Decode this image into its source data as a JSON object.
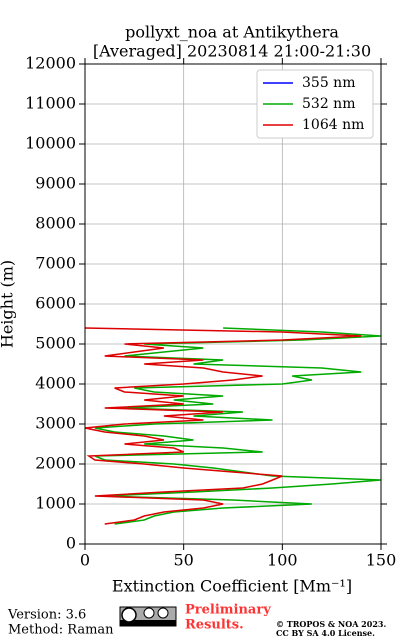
{
  "chart_data": {
    "type": "line",
    "title": [
      "pollyxt_noa at Antikythera",
      "[Averaged] 20230814 21:00-21:30"
    ],
    "x_label": "Extinction Coefficient [Mm⁻¹]",
    "y_label": "Height (m)",
    "heights": [
      500,
      600,
      700,
      800,
      900,
      1000,
      1100,
      1200,
      1300,
      1400,
      1500,
      1600,
      1700,
      1800,
      1900,
      2000,
      2100,
      2200,
      2300,
      2400,
      2500,
      2600,
      2700,
      2800,
      2900,
      3000,
      3100,
      3200,
      3300,
      3400,
      3500,
      3600,
      3700,
      3800,
      3900,
      4000,
      4100,
      4200,
      4300,
      4400,
      4500,
      4600,
      4700,
      4800,
      4900,
      5000,
      5100,
      5200,
      5300,
      5400
    ],
    "series": [
      {
        "name": "355 nm",
        "color": "#0000ff",
        "values": [
          null,
          null,
          null,
          null,
          null,
          null,
          null,
          null,
          null,
          null,
          null,
          null,
          null,
          null,
          null,
          null,
          null,
          null,
          null,
          null,
          null,
          null,
          null,
          null,
          null,
          null,
          null,
          null,
          null,
          null,
          null,
          null,
          null,
          null,
          null,
          null,
          null,
          null,
          null,
          null,
          null,
          null,
          null,
          null,
          null,
          null,
          null,
          null,
          null,
          null
        ]
      },
      {
        "name": "532 nm",
        "color": "#00aa00",
        "values": [
          15,
          30,
          35,
          45,
          70,
          115,
          75,
          10,
          55,
          95,
          125,
          150,
          95,
          80,
          65,
          45,
          10,
          5,
          90,
          70,
          30,
          55,
          40,
          15,
          5,
          35,
          95,
          55,
          80,
          20,
          65,
          45,
          70,
          35,
          25,
          100,
          115,
          105,
          140,
          120,
          55,
          70,
          20,
          40,
          60,
          30,
          110,
          150,
          120,
          70
        ]
      },
      {
        "name": "1064 nm",
        "color": "#dd0000",
        "values": [
          10,
          25,
          30,
          40,
          60,
          70,
          60,
          5,
          40,
          80,
          90,
          95,
          100,
          75,
          50,
          30,
          5,
          2,
          50,
          45,
          20,
          40,
          30,
          10,
          0,
          20,
          60,
          40,
          70,
          10,
          50,
          30,
          50,
          20,
          15,
          50,
          75,
          90,
          70,
          60,
          30,
          60,
          10,
          25,
          40,
          20,
          100,
          140,
          100,
          0
        ]
      }
    ],
    "xlim": [
      0,
      150
    ],
    "xticks": [
      0,
      50,
      100,
      150
    ],
    "ylim": [
      0,
      12000
    ],
    "yticks": [
      0,
      1000,
      2000,
      3000,
      4000,
      5000,
      6000,
      7000,
      8000,
      9000,
      10000,
      11000,
      12000
    ],
    "grid": true,
    "legend": "upper right",
    "footer": {
      "version": "Version: 3.6",
      "method": "Method: Raman",
      "preliminary": [
        "Preliminary",
        "Results."
      ],
      "copyright": [
        "© TROPOS & NOA 2023.",
        "CC BY SA 4.0 License."
      ]
    }
  }
}
